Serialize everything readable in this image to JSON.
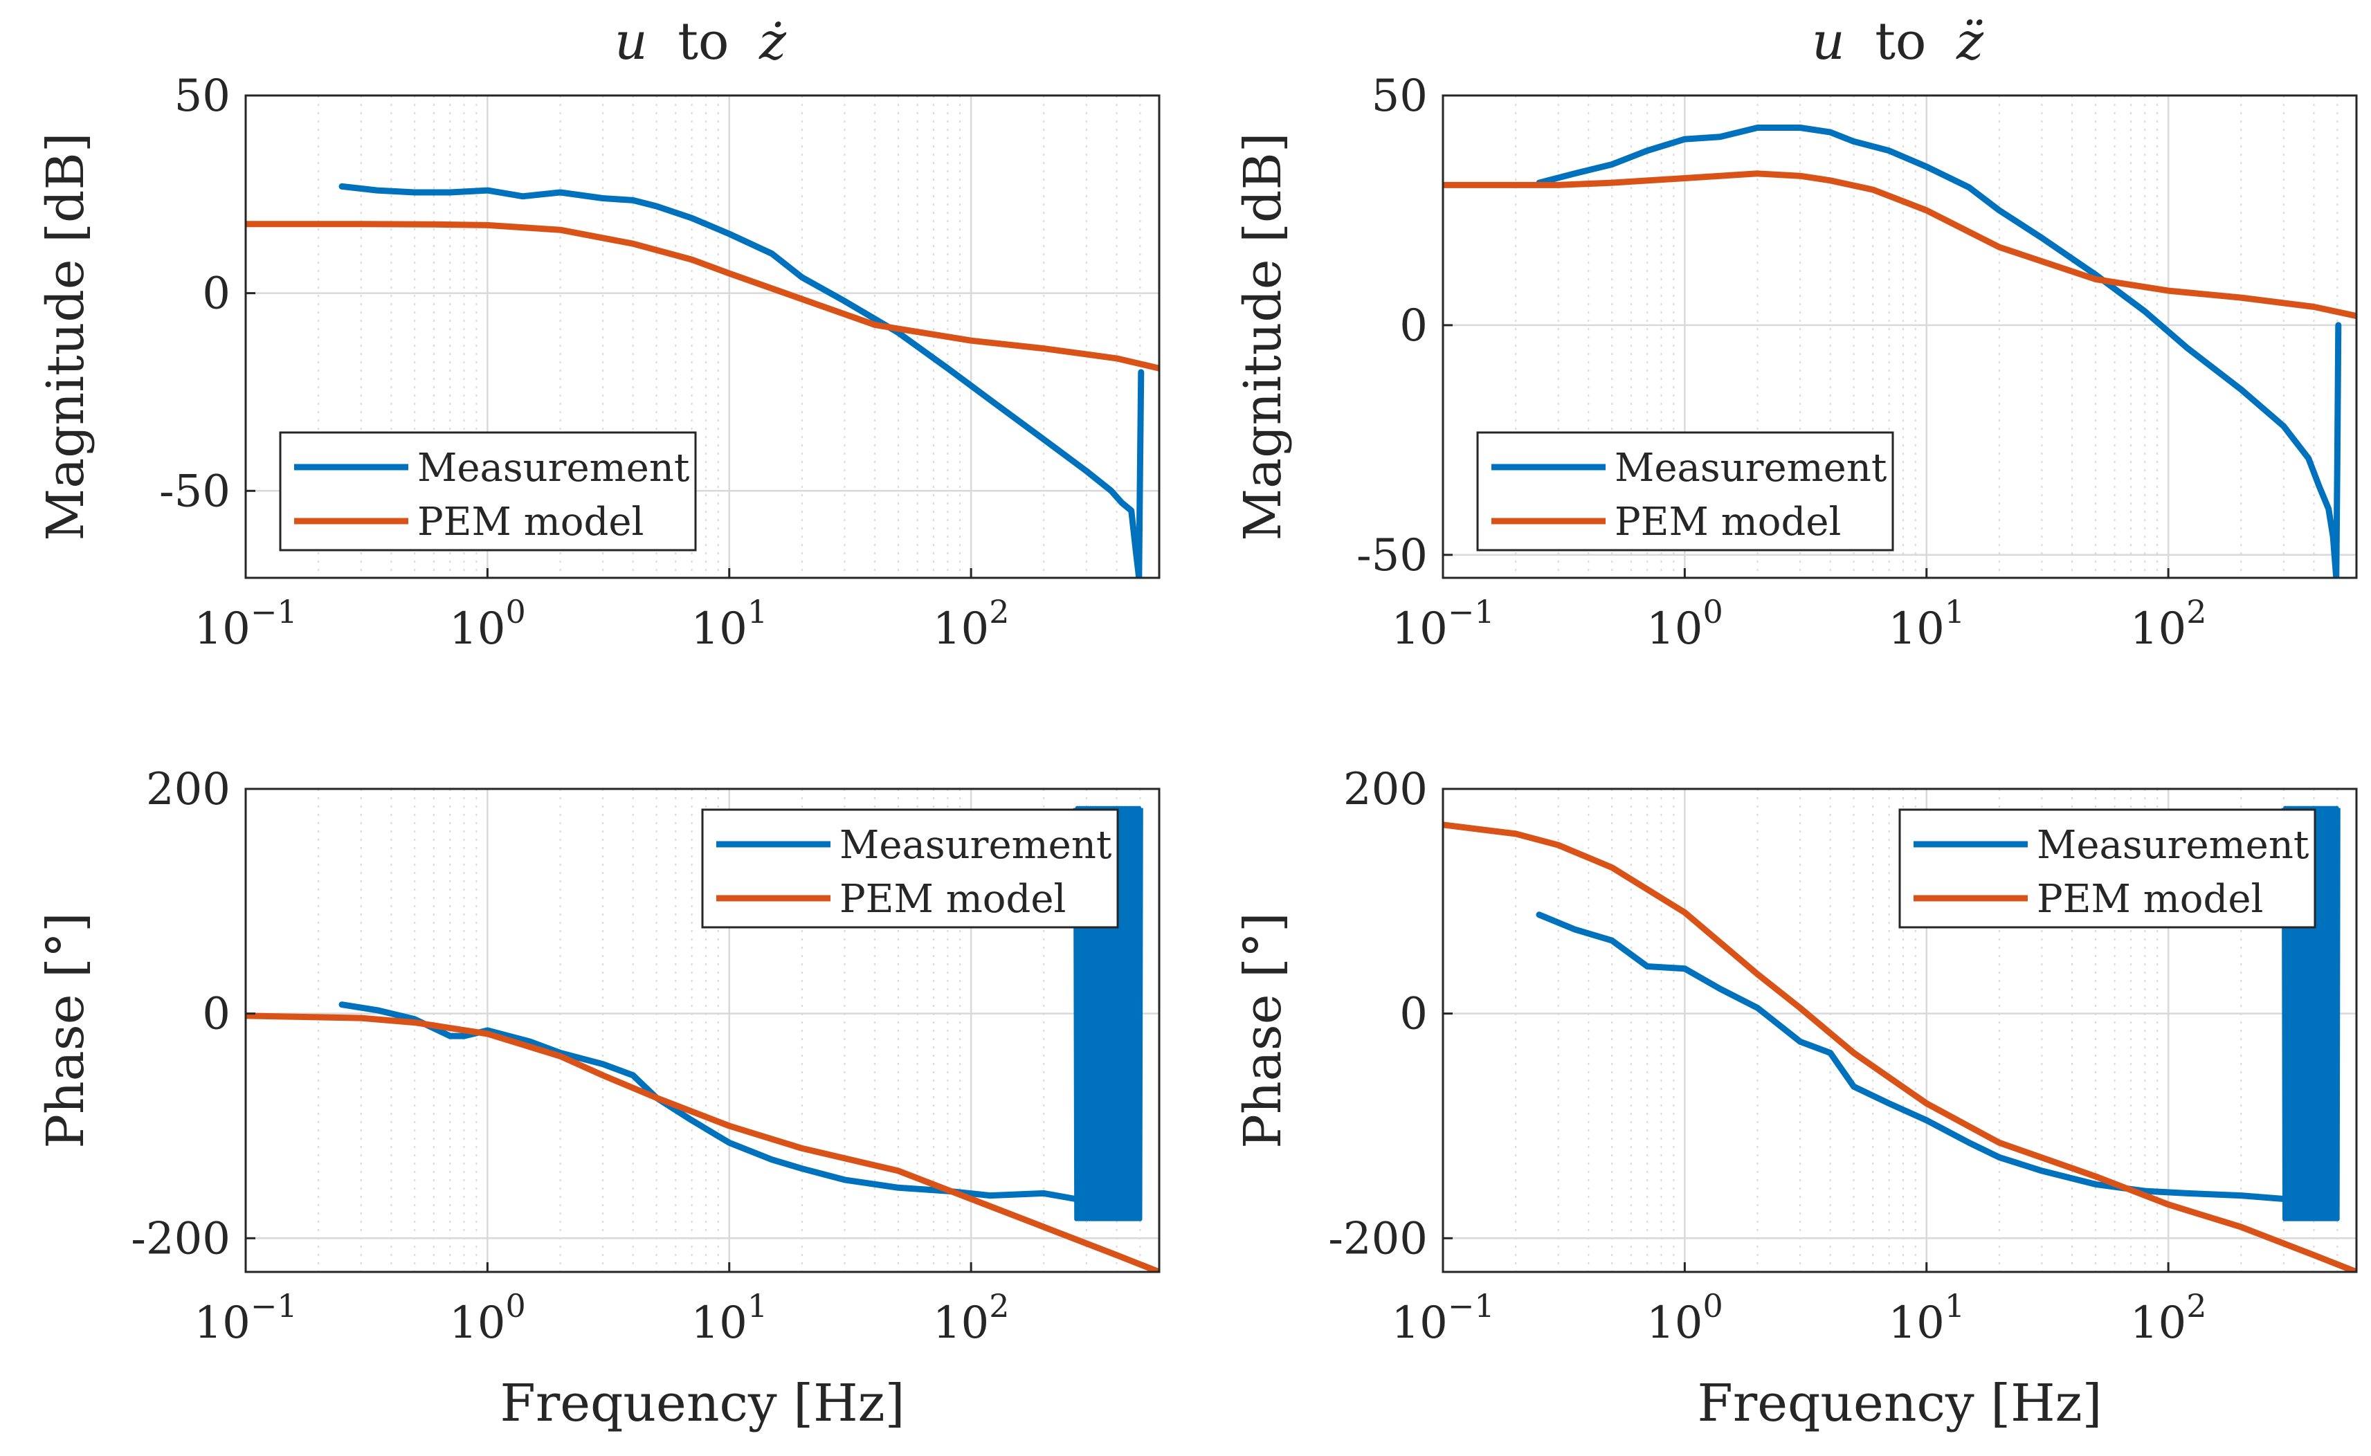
{
  "colors": {
    "measurement": "#0072BD",
    "model": "#D95319",
    "grid": "#d9d9d9",
    "axis": "#262626"
  },
  "chart_data": [
    {
      "id": "mag-zdot",
      "type": "line",
      "title": "u to ż",
      "title_var": "u",
      "title_word": "to",
      "title_var2": "ż",
      "xlabel": "",
      "ylabel": "Magnitude [dB]",
      "xscale": "log",
      "xlim": [
        0.1,
        600
      ],
      "ylim": [
        -72,
        50
      ],
      "xticks": [
        0.1,
        1,
        10,
        100
      ],
      "xticklabels": [
        "10",
        "10",
        "10",
        "10"
      ],
      "xtickexps": [
        "−1",
        "0",
        "1",
        "2"
      ],
      "yticks": [
        -50,
        0,
        50
      ],
      "yticklabels": [
        "-50",
        "0",
        "50"
      ],
      "legend": {
        "position": "bottom-left",
        "entries": [
          "Measurement",
          "PEM model"
        ]
      },
      "series": [
        {
          "name": "Measurement",
          "x": [
            0.25,
            0.35,
            0.5,
            0.7,
            1,
            1.4,
            2,
            3,
            4,
            5,
            7,
            10,
            15,
            20,
            30,
            50,
            80,
            120,
            200,
            300,
            380,
            420,
            460,
            480,
            495,
            500,
            505
          ],
          "y": [
            27,
            26,
            25.5,
            25.5,
            26,
            24.5,
            25.5,
            24,
            23.5,
            22,
            19,
            15,
            10,
            4,
            -2,
            -10,
            -19,
            -27,
            -37,
            -45,
            -50,
            -53,
            -55,
            -65,
            -72,
            -45,
            -20
          ]
        },
        {
          "name": "PEM model",
          "x": [
            0.1,
            0.3,
            0.6,
            1,
            2,
            4,
            7,
            10,
            20,
            40,
            50,
            100,
            200,
            400,
            600
          ],
          "y": [
            17.5,
            17.5,
            17.4,
            17.2,
            16,
            12.5,
            8.5,
            5,
            -1.5,
            -8,
            -9,
            -12,
            -14,
            -16.5,
            -19
          ]
        }
      ]
    },
    {
      "id": "mag-zddot",
      "type": "line",
      "title": "u to z̈",
      "title_var": "u",
      "title_word": "to",
      "title_var2": "z̈",
      "xlabel": "",
      "ylabel": "Magnitude [dB]",
      "xscale": "log",
      "xlim": [
        0.1,
        600
      ],
      "ylim": [
        -55,
        50
      ],
      "xticks": [
        0.1,
        1,
        10,
        100
      ],
      "xticklabels": [
        "10",
        "10",
        "10",
        "10"
      ],
      "xtickexps": [
        "−1",
        "0",
        "1",
        "2"
      ],
      "yticks": [
        -50,
        0,
        50
      ],
      "yticklabels": [
        "-50",
        "0",
        "50"
      ],
      "legend": {
        "position": "bottom-left",
        "entries": [
          "Measurement",
          "PEM model"
        ]
      },
      "series": [
        {
          "name": "Measurement",
          "x": [
            0.25,
            0.35,
            0.5,
            0.7,
            1,
            1.4,
            2,
            3,
            4,
            5,
            7,
            10,
            15,
            20,
            30,
            50,
            80,
            120,
            200,
            300,
            380,
            420,
            460,
            480,
            495,
            500,
            505
          ],
          "y": [
            31,
            33,
            35,
            38,
            40.5,
            41,
            43,
            43,
            42,
            40,
            38,
            34.5,
            30,
            25,
            19,
            11,
            3,
            -5,
            -14,
            -22,
            -29,
            -35,
            -40,
            -46,
            -55,
            -30,
            0
          ]
        },
        {
          "name": "PEM model",
          "x": [
            0.1,
            0.3,
            0.5,
            1,
            2,
            3,
            4,
            6,
            10,
            20,
            50,
            100,
            200,
            400,
            600
          ],
          "y": [
            30.5,
            30.5,
            31,
            32,
            33,
            32.5,
            31.5,
            29.5,
            25,
            17,
            10,
            7.5,
            6,
            4,
            2
          ]
        }
      ]
    },
    {
      "id": "phase-zdot",
      "type": "line",
      "title": "",
      "xlabel": "Frequency [Hz]",
      "ylabel": "Phase [°]",
      "xscale": "log",
      "xlim": [
        0.1,
        600
      ],
      "ylim": [
        -230,
        200
      ],
      "xticks": [
        0.1,
        1,
        10,
        100
      ],
      "xticklabels": [
        "10",
        "10",
        "10",
        "10"
      ],
      "xtickexps": [
        "−1",
        "0",
        "1",
        "2"
      ],
      "yticks": [
        -200,
        0,
        200
      ],
      "yticklabels": [
        "-200",
        "0",
        "200"
      ],
      "legend": {
        "position": "top-right",
        "entries": [
          "Measurement",
          "PEM model"
        ]
      },
      "series": [
        {
          "name": "Measurement",
          "x": [
            0.25,
            0.35,
            0.5,
            0.7,
            0.8,
            1,
            1.5,
            2,
            3,
            4,
            5,
            7,
            10,
            15,
            20,
            30,
            50,
            80,
            120,
            200,
            270
          ],
          "y": [
            8,
            3,
            -5,
            -20,
            -20,
            -15,
            -25,
            -35,
            -45,
            -55,
            -75,
            -95,
            -115,
            -130,
            -138,
            -148,
            -155,
            -158,
            -162,
            -160,
            -165
          ]
        },
        {
          "name": "PEM model",
          "x": [
            0.1,
            0.3,
            0.5,
            1,
            2,
            3,
            5,
            10,
            20,
            50,
            100,
            200,
            400,
            600
          ],
          "y": [
            -2,
            -4,
            -8,
            -18,
            -38,
            -55,
            -75,
            -100,
            -120,
            -140,
            -165,
            -190,
            -215,
            -230
          ]
        }
      ],
      "oscillation": {
        "x_start": 270,
        "x_end": 505,
        "ymin": -183,
        "ymax": 183
      }
    },
    {
      "id": "phase-zddot",
      "type": "line",
      "title": "",
      "xlabel": "Frequency [Hz]",
      "ylabel": "Phase [°]",
      "xscale": "log",
      "xlim": [
        0.1,
        600
      ],
      "ylim": [
        -230,
        200
      ],
      "xticks": [
        0.1,
        1,
        10,
        100
      ],
      "xticklabels": [
        "10",
        "10",
        "10",
        "10"
      ],
      "xtickexps": [
        "−1",
        "0",
        "1",
        "2"
      ],
      "yticks": [
        -200,
        0,
        200
      ],
      "yticklabels": [
        "-200",
        "0",
        "200"
      ],
      "legend": {
        "position": "top-right",
        "entries": [
          "Measurement",
          "PEM model"
        ]
      },
      "series": [
        {
          "name": "Measurement",
          "x": [
            0.25,
            0.35,
            0.5,
            0.7,
            1,
            1.4,
            2,
            3,
            4,
            5,
            7,
            10,
            15,
            20,
            30,
            50,
            80,
            120,
            200,
            300
          ],
          "y": [
            88,
            75,
            65,
            42,
            40,
            22,
            5,
            -25,
            -35,
            -65,
            -80,
            -95,
            -115,
            -128,
            -140,
            -152,
            -158,
            -160,
            -162,
            -165
          ]
        },
        {
          "name": "PEM model",
          "x": [
            0.1,
            0.2,
            0.3,
            0.5,
            1,
            2,
            3,
            5,
            10,
            20,
            50,
            100,
            200,
            400,
            600
          ],
          "y": [
            168,
            160,
            150,
            130,
            90,
            35,
            5,
            -35,
            -80,
            -115,
            -145,
            -170,
            -190,
            -215,
            -230
          ]
        }
      ],
      "oscillation": {
        "x_start": 300,
        "x_end": 505,
        "ymin": -183,
        "ymax": 183
      }
    }
  ]
}
